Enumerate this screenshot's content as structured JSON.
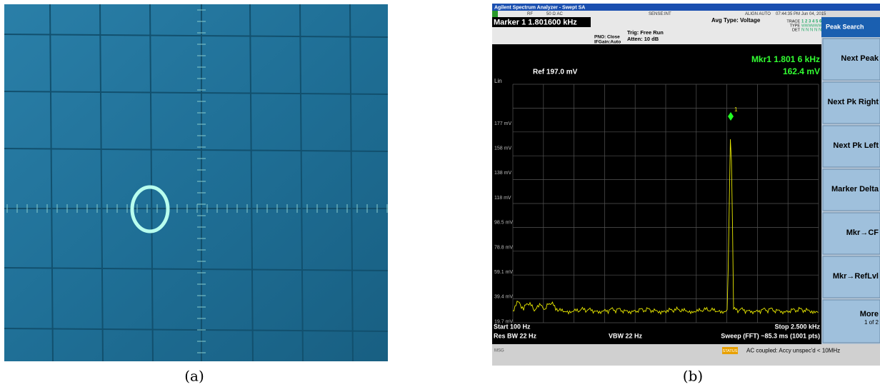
{
  "panel_a": {
    "caption": "(a)"
  },
  "panel_b": {
    "caption": "(b)",
    "title_bar": "Agilent Spectrum Analyzer - Swept SA",
    "status_row": [
      "RF",
      "50 Ω  AC",
      "SENSE:INT",
      "ALIGN AUTO",
      "07:44:35 PM Jun 04, 2015"
    ],
    "marker": "Marker 1 1.801600 kHz",
    "settings": [
      "PNO: Close",
      "IFGain:Auto",
      "Trig: Free Run",
      "Atten: 10 dB",
      "Avg Type: Voltage"
    ],
    "trace_info": {
      "trace": "TRACE",
      "trace_nums": "1 2 3 4 5 6",
      "type": "TYPE",
      "type_val": "WWWWWW",
      "det": "DET",
      "det_val": "N N N N N N"
    },
    "scale": "Lin",
    "ref": "Ref 197.0 mV",
    "mkr_readout": [
      "Mkr1 1.801 6 kHz",
      "162.4 mV"
    ],
    "marker_label": "1",
    "y_labels": [
      "177 mV",
      "158 mV",
      "138 mV",
      "118 mV",
      "98.5 mV",
      "78.8 mV",
      "59.1 mV",
      "39.4 mV",
      "19.7 mV"
    ],
    "footer": {
      "start": "Start 100 Hz",
      "stop": "Stop 2.500 kHz",
      "rbw": "Res BW 22 Hz",
      "vbw": "VBW 22 Hz",
      "sweep": "Sweep (FFT)  ~85.3 ms (1001 pts)"
    },
    "softkeys": {
      "header": "Peak Search",
      "buttons": [
        "Next Peak",
        "Next Pk Right",
        "Next Pk Left",
        "Marker Delta",
        "Mkr→CF",
        "Mkr→RefLvl"
      ],
      "more": "More",
      "page": "1 of 2"
    },
    "status_bar": {
      "msg": "MSG",
      "status": "STATUS",
      "message": "AC coupled: Accy unspec'd < 10MHz"
    }
  }
}
